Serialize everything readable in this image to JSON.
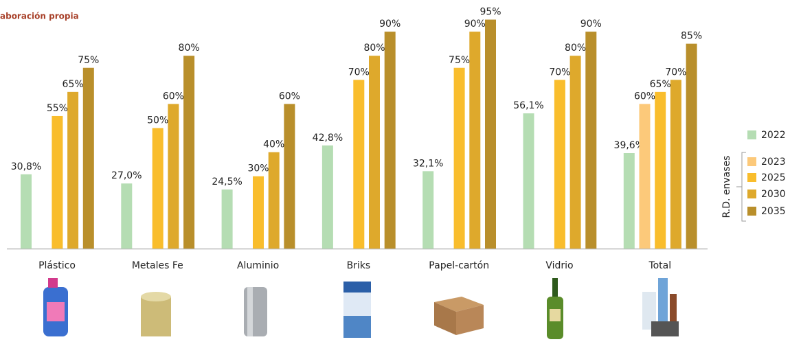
{
  "source": "aboración propia",
  "chart_data": {
    "type": "bar",
    "categories": [
      "Plástico",
      "Metales Fe",
      "Aluminio",
      "Briks",
      "Papel-cartón",
      "Vidrio",
      "Total"
    ],
    "legend_group_label": "R.D. envases",
    "legend": "right",
    "series": [
      {
        "name": "2022",
        "color": "#b5ddb3",
        "values": [
          30.8,
          27.0,
          24.5,
          42.8,
          32.1,
          56.1,
          39.6
        ],
        "value_labels": [
          "30,8%",
          "27,0%",
          "24,5%",
          "42,8%",
          "32,1%",
          "56,1%",
          "39,6%"
        ]
      },
      {
        "name": "2023",
        "color": "#fcc97a",
        "values": [
          null,
          null,
          null,
          null,
          null,
          null,
          60
        ],
        "value_labels": [
          null,
          null,
          null,
          null,
          null,
          null,
          "60%"
        ]
      },
      {
        "name": "2025",
        "color": "#f9bd2c",
        "values": [
          55,
          50,
          30,
          70,
          75,
          70,
          65
        ],
        "value_labels": [
          "55%",
          "50%",
          "30%",
          "70%",
          "75%",
          "70%",
          "65%"
        ]
      },
      {
        "name": "2030",
        "color": "#dea92c",
        "values": [
          65,
          60,
          40,
          80,
          90,
          80,
          70
        ],
        "value_labels": [
          "65%",
          "60%",
          "40%",
          "80%",
          "90%",
          "80%",
          "70%"
        ]
      },
      {
        "name": "2035",
        "color": "#b98f2b",
        "values": [
          75,
          80,
          60,
          90,
          95,
          90,
          85
        ],
        "value_labels": [
          "75%",
          "80%",
          "60%",
          "90%",
          "95%",
          "90%",
          "85%"
        ]
      }
    ]
  }
}
